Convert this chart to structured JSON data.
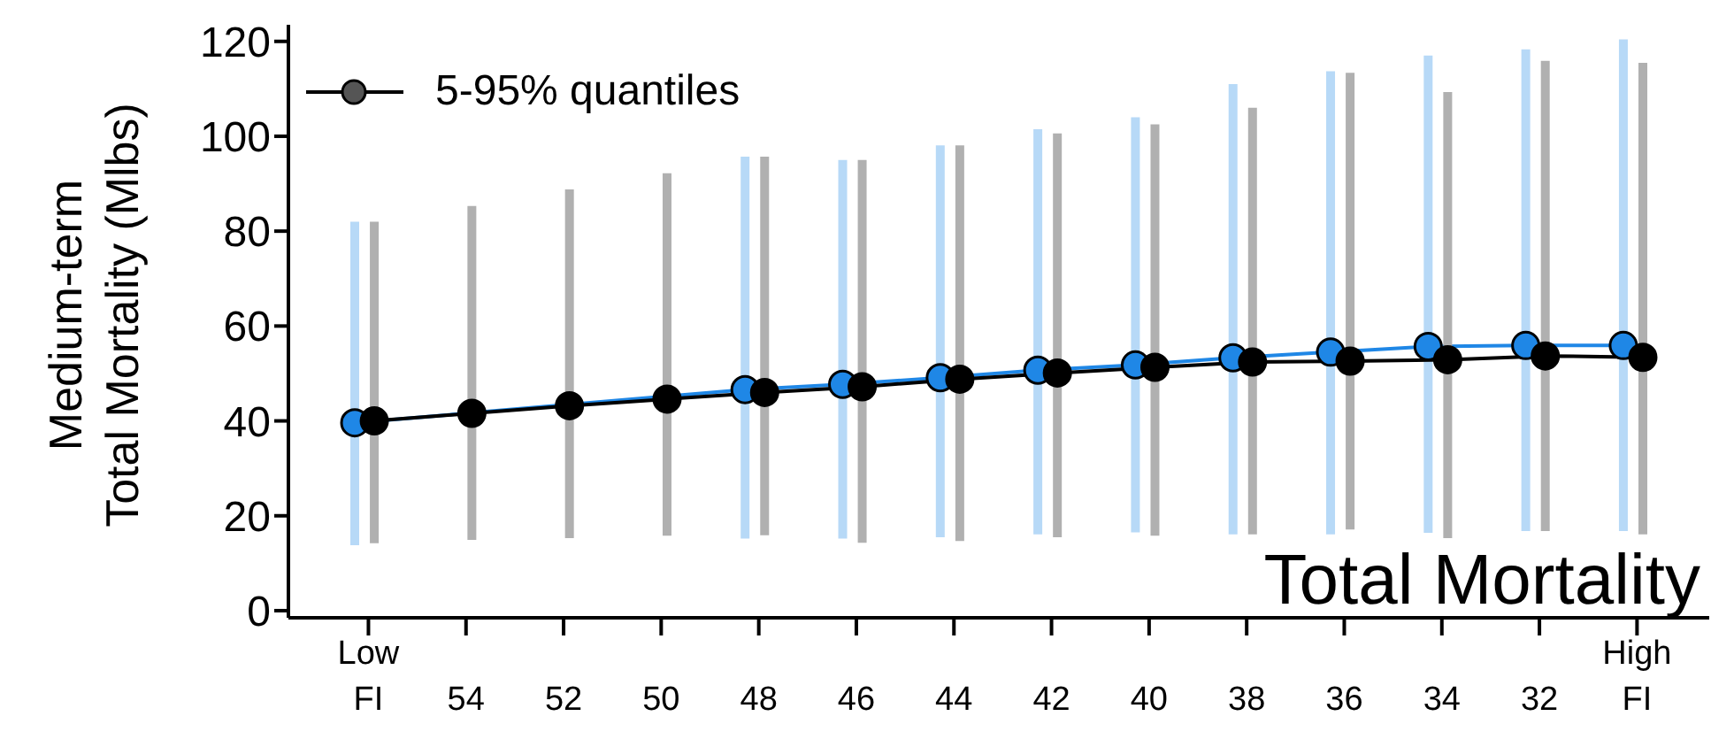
{
  "chart_data": {
    "type": "line",
    "title": "Total Mortality",
    "ylabel": "Medium-term\nTotal Mortality (Mlbs)",
    "categories": [
      "Low\nFI",
      "54",
      "52",
      "50",
      "48",
      "46",
      "44",
      "42",
      "40",
      "38",
      "36",
      "34",
      "32",
      "High\nFI"
    ],
    "series": [
      {
        "color": "#1f87e6",
        "values": [
          39.6,
          null,
          null,
          null,
          46.6,
          47.7,
          49.1,
          50.7,
          51.8,
          53.3,
          54.5,
          55.7,
          55.9,
          55.9
        ],
        "errors": [
          [
            13.8,
            82.0
          ],
          null,
          null,
          null,
          [
            15.2,
            95.7
          ],
          [
            15.2,
            95.0
          ],
          [
            15.5,
            98.1
          ],
          [
            16.1,
            101.5
          ],
          [
            16.5,
            104.0
          ],
          [
            16.1,
            111.0
          ],
          [
            16.1,
            113.7
          ],
          [
            16.4,
            117.0
          ],
          [
            16.8,
            118.3
          ],
          [
            16.8,
            120.4
          ]
        ]
      },
      {
        "color": "#000000",
        "values": [
          40.0,
          41.6,
          43.2,
          44.6,
          46.0,
          47.2,
          48.8,
          50.1,
          51.3,
          52.4,
          52.6,
          52.9,
          53.7,
          53.4
        ],
        "errors": [
          [
            14.2,
            82.0
          ],
          [
            14.9,
            85.3
          ],
          [
            15.3,
            88.8
          ],
          [
            15.8,
            92.2
          ],
          [
            15.9,
            95.7
          ],
          [
            14.3,
            95.0
          ],
          [
            14.7,
            98.1
          ],
          [
            15.5,
            100.6
          ],
          [
            15.8,
            102.5
          ],
          [
            16.1,
            106.0
          ],
          [
            17.1,
            113.4
          ],
          [
            15.3,
            109.3
          ],
          [
            16.8,
            115.9
          ],
          [
            16.1,
            115.5
          ]
        ]
      }
    ],
    "ylim": [
      -1.5,
      123.5
    ],
    "yticks": [
      0,
      20,
      40,
      60,
      80,
      100,
      120
    ],
    "marker": "circle",
    "grid": false,
    "annotations": [
      "5-95% quantiles"
    ]
  }
}
